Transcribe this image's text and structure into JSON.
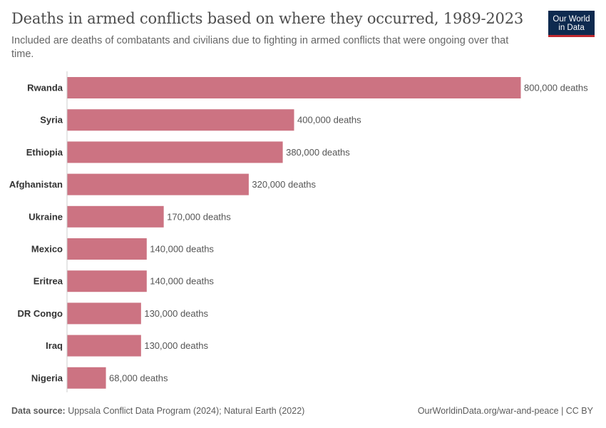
{
  "header": {
    "title": "Deaths in armed conflicts based on where they occurred, 1989-2023",
    "subtitle": "Included are deaths of combatants and civilians due to fighting in armed conflicts that were ongoing over that time."
  },
  "logo": {
    "line1": "Our World",
    "line2": "in Data"
  },
  "footer": {
    "source_label": "Data source:",
    "source_text": "Uppsala Conflict Data Program (2024); Natural Earth (2022)",
    "link": "OurWorldinData.org/war-and-peace | CC BY"
  },
  "colors": {
    "bar": "#cc7382",
    "axis": "#cccccc",
    "label": "#333333",
    "value_label": "#555555",
    "logo_bg": "#0e2a4f",
    "logo_accent": "#c0282e"
  },
  "chart_data": {
    "type": "bar",
    "orientation": "horizontal",
    "categories": [
      "Rwanda",
      "Syria",
      "Ethiopia",
      "Afghanistan",
      "Ukraine",
      "Mexico",
      "Eritrea",
      "DR Congo",
      "Iraq",
      "Nigeria"
    ],
    "values": [
      800000,
      400000,
      380000,
      320000,
      170000,
      140000,
      140000,
      130000,
      130000,
      68000
    ],
    "value_labels": [
      "800,000 deaths",
      "400,000 deaths",
      "380,000 deaths",
      "320,000 deaths",
      "170,000 deaths",
      "140,000 deaths",
      "140,000 deaths",
      "130,000 deaths",
      "130,000 deaths",
      "68,000 deaths"
    ],
    "xlim": [
      0,
      800000
    ],
    "grid": false,
    "legend": "none"
  }
}
